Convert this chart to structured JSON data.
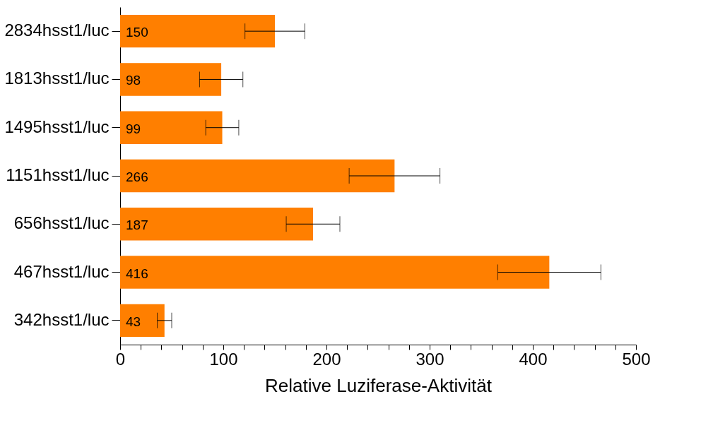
{
  "chart_data": {
    "type": "bar",
    "orientation": "horizontal",
    "xlabel": "Relative Luziferase-Aktivität",
    "categories": [
      "2834hsst1/luc",
      "1813hsst1/luc",
      "1495hsst1/luc",
      "1151hsst1/luc",
      "656hsst1/luc",
      "467hsst1/luc",
      "342hsst1/luc"
    ],
    "values": [
      150,
      98,
      99,
      266,
      187,
      416,
      43
    ],
    "errors": [
      29,
      21,
      16,
      44,
      26,
      50,
      7
    ],
    "color": "#ff7f00",
    "data_labels": true,
    "grid": false,
    "xlim": [
      0,
      500
    ],
    "xticks": [
      0,
      {
        "value": 20,
        "label": null
      },
      {
        "value": 40,
        "label": null
      },
      {
        "value": 60,
        "label": null
      },
      {
        "value": 80,
        "label": null
      },
      100,
      {
        "value": 120,
        "label": null
      },
      {
        "value": 140,
        "label": null
      },
      {
        "value": 160,
        "label": null
      },
      {
        "value": 180,
        "label": null
      },
      200,
      {
        "value": 220,
        "label": null
      },
      {
        "value": 240,
        "label": null
      },
      {
        "value": 260,
        "label": null
      },
      {
        "value": 280,
        "label": null
      },
      300,
      {
        "value": 320,
        "label": null
      },
      {
        "value": 340,
        "label": null
      },
      {
        "value": 360,
        "label": null
      },
      {
        "value": 380,
        "label": null
      },
      400,
      {
        "value": 420,
        "label": null
      },
      {
        "value": 440,
        "label": null
      },
      {
        "value": 460,
        "label": null
      },
      {
        "value": 480,
        "label": null
      },
      500
    ]
  }
}
